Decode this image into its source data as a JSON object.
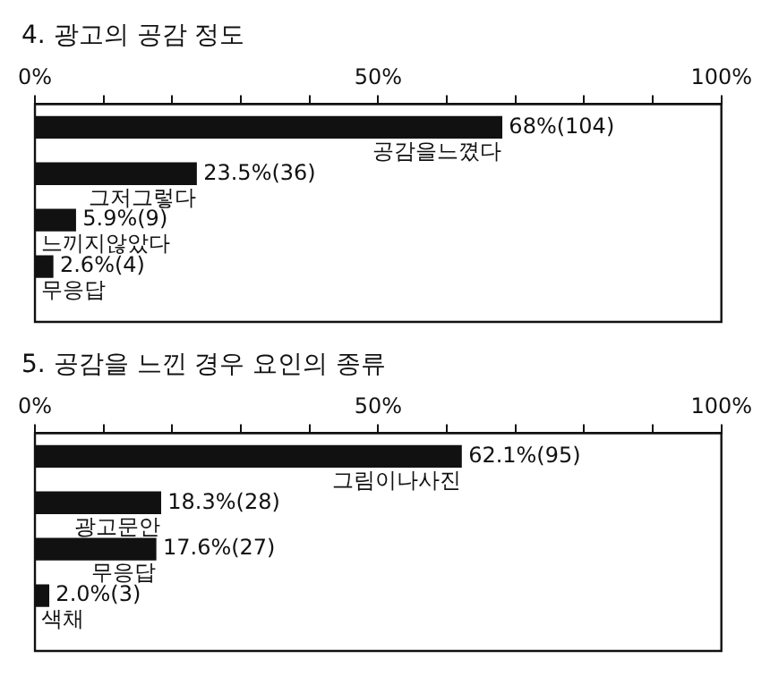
{
  "chart_data": [
    {
      "type": "bar",
      "title": "4. 광고의 공감 정도",
      "orientation": "horizontal",
      "categories": [
        "공감을느꼈다",
        "그저그렇다",
        "느끼지않았다",
        "무응답"
      ],
      "values": [
        68,
        23.5,
        5.9,
        2.6
      ],
      "value_labels": [
        "68%(104)",
        "23.5%(36)",
        "5.9%(9)",
        "2.6%(4)"
      ],
      "color": "#111111",
      "xlim": [
        0,
        100
      ],
      "xticks": [
        {
          "value": 0,
          "label": "0%"
        },
        {
          "value": 10,
          "label": null
        },
        {
          "value": 20,
          "label": null
        },
        {
          "value": 30,
          "label": null
        },
        {
          "value": 40,
          "label": null
        },
        {
          "value": 50,
          "label": "50%"
        },
        {
          "value": 60,
          "label": null
        },
        {
          "value": 70,
          "label": null
        },
        {
          "value": 80,
          "label": null
        },
        {
          "value": 90,
          "label": null
        },
        {
          "value": 100,
          "label": "100%"
        }
      ],
      "grid": false,
      "legend": false
    },
    {
      "type": "bar",
      "title": "5. 공감을 느낀 경우 요인의 종류",
      "orientation": "horizontal",
      "categories": [
        "그림이나사진",
        "광고문안",
        "무응답",
        "색채"
      ],
      "values": [
        62.1,
        18.3,
        17.6,
        2.0
      ],
      "value_labels": [
        "62.1%(95)",
        "18.3%(28)",
        "17.6%(27)",
        "2.0%(3)"
      ],
      "color": "#111111",
      "xlim": [
        0,
        100
      ],
      "xticks": [
        {
          "value": 0,
          "label": "0%"
        },
        {
          "value": 10,
          "label": null
        },
        {
          "value": 20,
          "label": null
        },
        {
          "value": 30,
          "label": null
        },
        {
          "value": 40,
          "label": null
        },
        {
          "value": 50,
          "label": "50%"
        },
        {
          "value": 60,
          "label": null
        },
        {
          "value": 70,
          "label": null
        },
        {
          "value": 80,
          "label": null
        },
        {
          "value": 90,
          "label": null
        },
        {
          "value": 100,
          "label": "100%"
        }
      ],
      "grid": false,
      "legend": false
    }
  ]
}
